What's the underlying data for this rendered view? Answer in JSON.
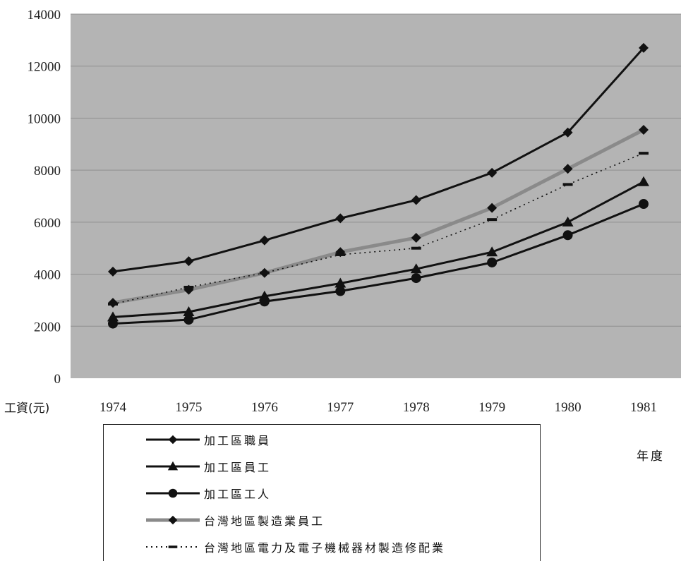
{
  "chart_data": {
    "type": "line",
    "x": [
      "1974",
      "1975",
      "1976",
      "1977",
      "1978",
      "1979",
      "1980",
      "1981"
    ],
    "ylim": [
      0,
      14000
    ],
    "yticks": [
      "0",
      "2000",
      "4000",
      "6000",
      "8000",
      "10000",
      "12000",
      "14000"
    ],
    "ylabel": "工資(元)",
    "xlabel": "年度",
    "grid": true,
    "legend_position": "bottom",
    "series": [
      {
        "name": "加工區職員",
        "values": [
          4100,
          4500,
          5300,
          6150,
          6850,
          7900,
          9450,
          12700
        ],
        "marker": "diamond",
        "color": "#111111",
        "style": "solid"
      },
      {
        "name": "加工區員工",
        "values": [
          2350,
          2550,
          3150,
          3650,
          4200,
          4850,
          6000,
          7550
        ],
        "marker": "triangle",
        "color": "#111111",
        "style": "solid"
      },
      {
        "name": "加工區工人",
        "values": [
          2100,
          2250,
          2950,
          3350,
          3850,
          4450,
          5500,
          6700
        ],
        "marker": "circle",
        "color": "#111111",
        "style": "solid"
      },
      {
        "name": "台灣地區製造業員工",
        "values": [
          2900,
          3400,
          4050,
          4850,
          5400,
          6550,
          8050,
          9550
        ],
        "marker": "diamond",
        "color": "#8a8a8a",
        "style": "thick"
      },
      {
        "name": "台灣地區電力及電子機械器材製造修配業",
        "values": [
          2850,
          3500,
          4050,
          4750,
          5000,
          6100,
          7450,
          8650
        ],
        "marker": "dash",
        "color": "#111111",
        "style": "dotted"
      }
    ]
  }
}
